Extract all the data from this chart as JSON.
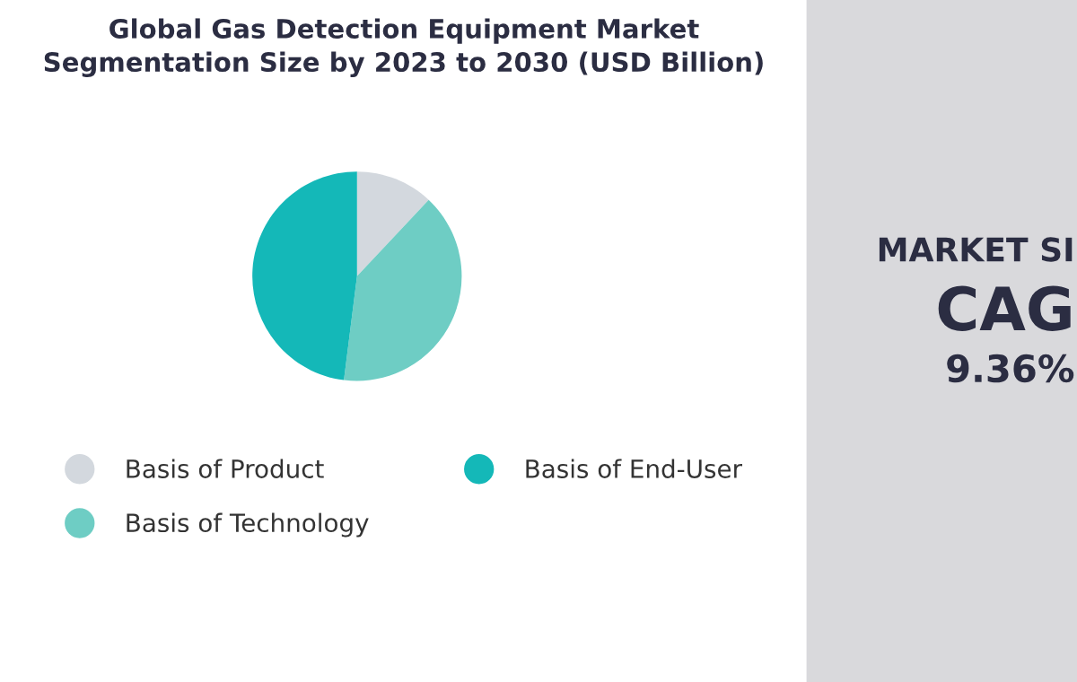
{
  "chart_data": {
    "type": "pie",
    "title": "Global Gas Detection Equipment Market\nSegmentation Size by 2023 to 2030 (USD Billion)",
    "categories": [
      "Basis of Product",
      "Basis of Technology",
      "Basis of End-User"
    ],
    "values": [
      12,
      40,
      48
    ],
    "colors": [
      "#d3d8de",
      "#6ecdc4",
      "#14b8b8"
    ],
    "legend": "bottom",
    "annotations": [
      "MARKET SI",
      "CAG",
      "9.36%"
    ]
  }
}
